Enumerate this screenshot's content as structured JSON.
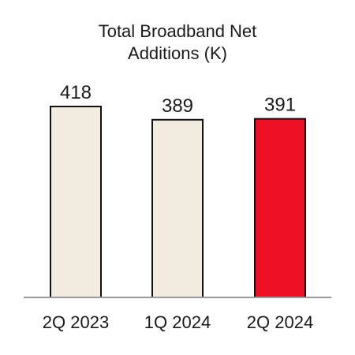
{
  "chart_data": {
    "type": "bar",
    "title": "Total Broadband Net Additions (K)",
    "title_lines": [
      "Total Broadband Net",
      "Additions (K)"
    ],
    "categories": [
      "2Q 2023",
      "1Q 2024",
      "2Q 2024"
    ],
    "values": [
      418,
      389,
      391
    ],
    "value_labels": [
      "418",
      "389",
      "391"
    ],
    "xlabel": "",
    "ylabel": "",
    "ylim": [
      0,
      418
    ],
    "grid": false,
    "legend": "none",
    "colors": {
      "bar_default": "#f2ebdf",
      "bar_highlight": "#ee1125",
      "bar_outline": "#111111",
      "axis": "#999999",
      "text": "#1a1a1a"
    },
    "highlight_index": 2
  }
}
